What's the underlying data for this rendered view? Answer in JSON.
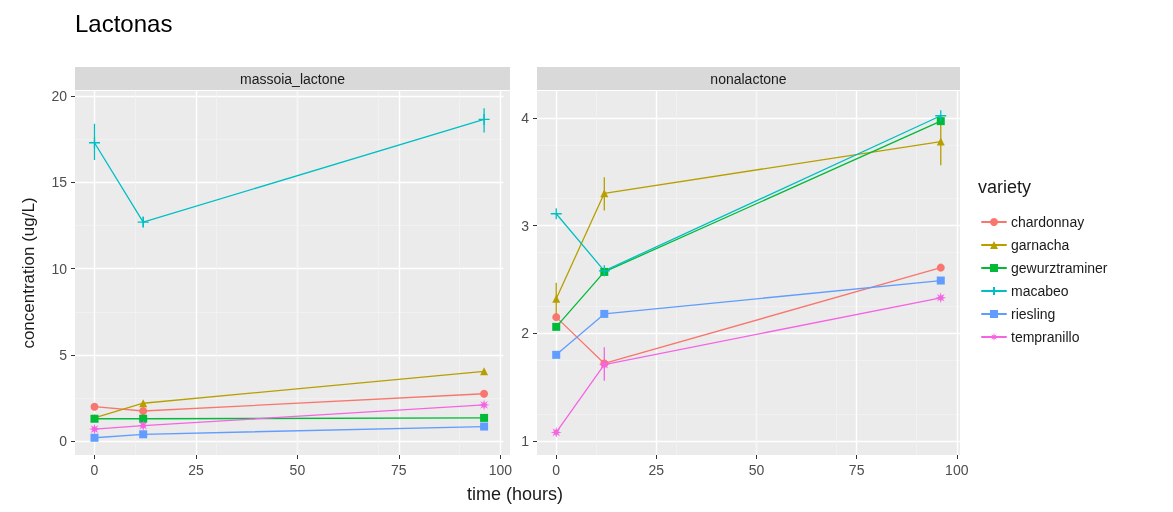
{
  "chart_data": [
    {
      "type": "line",
      "title": "Lactonas",
      "subtitle": "massoia_lactone",
      "ylabel": "concentration (ug/L)",
      "xlabel": "time (hours)",
      "x": [
        0,
        12,
        96
      ],
      "xlim": [
        -4.8,
        100.8
      ],
      "xticks": [
        0,
        25,
        50,
        75,
        100
      ],
      "ylim": [
        -0.8,
        20.3
      ],
      "yticks": [
        0,
        5,
        10,
        15,
        20
      ],
      "grid": true,
      "legend": false,
      "series": [
        {
          "color": "#f8766d",
          "marker": "circle",
          "values": [
            2.0,
            1.75,
            2.75
          ]
        },
        {
          "color": "#b79f00",
          "marker": "triangle",
          "values": [
            1.35,
            2.2,
            4.05
          ]
        },
        {
          "color": "#00ba38",
          "marker": "square",
          "values": [
            1.3,
            1.3,
            1.35
          ]
        },
        {
          "color": "#00bfc4",
          "marker": "cross",
          "values": [
            17.3,
            12.7,
            18.65
          ],
          "errors": [
            [
              16.3,
              18.4
            ],
            [
              12.4,
              13.0
            ],
            [
              17.9,
              19.3
            ]
          ]
        },
        {
          "color": "#619cff",
          "marker": "square",
          "values": [
            0.2,
            0.4,
            0.85
          ]
        },
        {
          "color": "#f564e3",
          "marker": "star",
          "values": [
            0.7,
            0.9,
            2.1
          ]
        }
      ]
    },
    {
      "type": "line",
      "subtitle": "nonalactone",
      "legend_title": "variety",
      "x": [
        0,
        12,
        96
      ],
      "xlim": [
        -4.8,
        100.8
      ],
      "xticks": [
        0,
        25,
        50,
        75,
        100
      ],
      "ylim": [
        0.87,
        4.25
      ],
      "yticks": [
        1,
        2,
        3,
        4
      ],
      "grid": true,
      "legend": "right",
      "series": [
        {
          "name": "chardonnay",
          "color": "#f8766d",
          "marker": "circle",
          "values": [
            2.15,
            1.72,
            2.61
          ]
        },
        {
          "name": "garnacha",
          "color": "#b79f00",
          "marker": "triangle",
          "values": [
            2.32,
            3.3,
            3.78
          ],
          "errors": [
            [
              2.18,
              2.47
            ],
            [
              3.14,
              3.45
            ],
            [
              3.56,
              4.02
            ]
          ]
        },
        {
          "name": "gewurztraminer",
          "color": "#00ba38",
          "marker": "square",
          "values": [
            2.06,
            2.57,
            3.97
          ]
        },
        {
          "name": "macabeo",
          "color": "#00bfc4",
          "marker": "cross",
          "values": [
            3.11,
            2.58,
            4.02
          ]
        },
        {
          "name": "riesling",
          "color": "#619cff",
          "marker": "square",
          "values": [
            1.8,
            2.18,
            2.49
          ]
        },
        {
          "name": "tempranillo",
          "color": "#f564e3",
          "marker": "star",
          "values": [
            1.08,
            1.71,
            2.33
          ],
          "errors": [
            null,
            [
              1.56,
              1.87
            ],
            null
          ]
        }
      ]
    }
  ]
}
